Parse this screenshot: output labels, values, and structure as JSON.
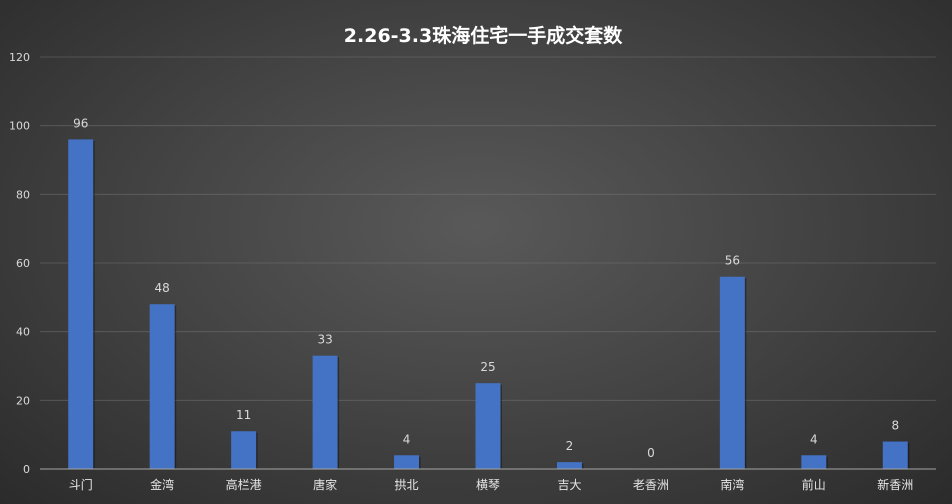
{
  "chart_data": {
    "type": "bar",
    "title": "2.26-3.3珠海住宅一手成交套数",
    "categories": [
      "斗门",
      "金湾",
      "高栏港",
      "唐家",
      "拱北",
      "横琴",
      "吉大",
      "老香洲",
      "南湾",
      "前山",
      "新香洲"
    ],
    "values": [
      96,
      48,
      11,
      33,
      4,
      25,
      2,
      0,
      56,
      4,
      8
    ],
    "ylim": [
      0,
      120
    ],
    "yticks": [
      0,
      20,
      40,
      60,
      80,
      100,
      120
    ],
    "grid": true,
    "legend": "none",
    "bar_color": "#4472c4",
    "show_data_labels": true
  }
}
